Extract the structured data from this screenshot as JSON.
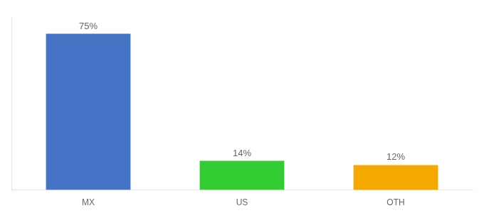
{
  "chart_data": {
    "type": "bar",
    "categories": [
      "MX",
      "US",
      "OTH"
    ],
    "values": [
      75,
      14,
      12
    ],
    "value_labels": [
      "75%",
      "14%",
      "12%"
    ],
    "colors": [
      "#4472c4",
      "#33cc33",
      "#f5a800"
    ],
    "ylim": [
      0,
      83
    ],
    "data_labels": true,
    "tick_labels": "x",
    "grid": false
  }
}
